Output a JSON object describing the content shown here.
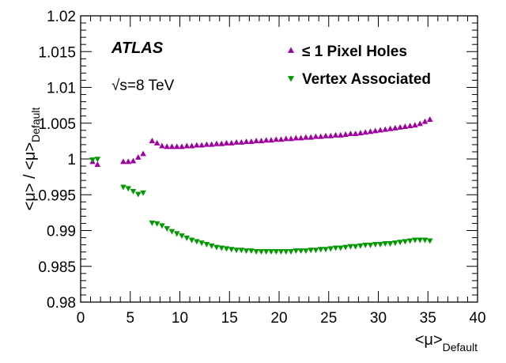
{
  "chart_data": {
    "type": "scatter",
    "title": "",
    "xlabel": "<μ>",
    "xlabel_sub": "Default",
    "ylabel": "<μ> / <μ>",
    "ylabel_sub": "Default",
    "xlim": [
      0,
      40
    ],
    "ylim": [
      0.98,
      1.02
    ],
    "x_ticks": [
      0,
      5,
      10,
      15,
      20,
      25,
      30,
      35,
      40
    ],
    "x_tick_labels": [
      "0",
      "5",
      "10",
      "15",
      "20",
      "25",
      "30",
      "35",
      "40"
    ],
    "y_ticks": [
      0.98,
      0.985,
      0.99,
      0.995,
      1.0,
      1.005,
      1.01,
      1.015,
      1.02
    ],
    "y_tick_labels": [
      "0.98",
      "0.985",
      "0.99",
      "0.995",
      "1",
      "1.005",
      "1.01",
      "1.015",
      "1.02"
    ],
    "annotations": {
      "experiment": "ATLAS",
      "energy": "√s=8 TeV"
    },
    "legend_position": "top-right",
    "series": [
      {
        "name": "≤ 1 Pixel Holes",
        "marker": "triangle-up",
        "color": "#a000a0",
        "x": [
          1.2,
          1.7,
          4.3,
          4.8,
          5.3,
          5.8,
          6.3,
          7.2,
          7.7,
          8.2,
          8.7,
          9.2,
          9.7,
          10.2,
          10.7,
          11.2,
          11.7,
          12.2,
          12.7,
          13.2,
          13.7,
          14.2,
          14.7,
          15.2,
          15.7,
          16.2,
          16.7,
          17.2,
          17.7,
          18.2,
          18.7,
          19.2,
          19.7,
          20.2,
          20.7,
          21.2,
          21.7,
          22.2,
          22.7,
          23.2,
          23.7,
          24.2,
          24.7,
          25.2,
          25.7,
          26.2,
          26.7,
          27.2,
          27.7,
          28.2,
          28.7,
          29.2,
          29.7,
          30.2,
          30.7,
          31.2,
          31.7,
          32.2,
          32.7,
          33.2,
          33.7,
          34.2,
          34.7,
          35.2
        ],
        "y": [
          0.9996,
          0.9992,
          0.9996,
          0.9996,
          0.9997,
          1.0002,
          1.0007,
          1.0025,
          1.0022,
          1.0018,
          1.0017,
          1.0017,
          1.0017,
          1.0017,
          1.0018,
          1.0018,
          1.0019,
          1.0019,
          1.002,
          1.002,
          1.0021,
          1.0021,
          1.0022,
          1.0022,
          1.0023,
          1.0023,
          1.0024,
          1.0024,
          1.0025,
          1.0025,
          1.0026,
          1.0026,
          1.0027,
          1.0027,
          1.0028,
          1.0028,
          1.0029,
          1.0029,
          1.003,
          1.003,
          1.0031,
          1.0031,
          1.0032,
          1.0032,
          1.0033,
          1.0033,
          1.0034,
          1.0035,
          1.0035,
          1.0036,
          1.0037,
          1.0038,
          1.0039,
          1.004,
          1.0041,
          1.0042,
          1.0043,
          1.0044,
          1.0045,
          1.0046,
          1.0047,
          1.0049,
          1.0052,
          1.0055
        ]
      },
      {
        "name": "Vertex Associated",
        "marker": "triangle-down",
        "color": "#009900",
        "x": [
          1.2,
          1.7,
          4.3,
          4.8,
          5.3,
          5.8,
          6.3,
          7.2,
          7.7,
          8.2,
          8.7,
          9.2,
          9.7,
          10.2,
          10.7,
          11.2,
          11.7,
          12.2,
          12.7,
          13.2,
          13.7,
          14.2,
          14.7,
          15.2,
          15.7,
          16.2,
          16.7,
          17.2,
          17.7,
          18.2,
          18.7,
          19.2,
          19.7,
          20.2,
          20.7,
          21.2,
          21.7,
          22.2,
          22.7,
          23.2,
          23.7,
          24.2,
          24.7,
          25.2,
          25.7,
          26.2,
          26.7,
          27.2,
          27.7,
          28.2,
          28.7,
          29.2,
          29.7,
          30.2,
          30.7,
          31.2,
          31.7,
          32.2,
          32.7,
          33.2,
          33.7,
          34.2,
          34.7,
          35.2
        ],
        "y": [
          0.9999,
          1.0,
          0.9961,
          0.9959,
          0.9955,
          0.9951,
          0.9953,
          0.9911,
          0.991,
          0.9907,
          0.9903,
          0.9899,
          0.9896,
          0.9893,
          0.989,
          0.9887,
          0.9885,
          0.9883,
          0.9881,
          0.9879,
          0.9877,
          0.9876,
          0.9875,
          0.9874,
          0.9873,
          0.9873,
          0.9872,
          0.9872,
          0.9871,
          0.9871,
          0.9871,
          0.9871,
          0.9871,
          0.9871,
          0.9871,
          0.9871,
          0.9872,
          0.9872,
          0.9872,
          0.9873,
          0.9873,
          0.9874,
          0.9874,
          0.9875,
          0.9876,
          0.9876,
          0.9877,
          0.9878,
          0.9878,
          0.9879,
          0.988,
          0.988,
          0.9881,
          0.9881,
          0.9882,
          0.9882,
          0.9883,
          0.9884,
          0.9885,
          0.9886,
          0.9887,
          0.9887,
          0.9887,
          0.9886
        ]
      }
    ]
  }
}
